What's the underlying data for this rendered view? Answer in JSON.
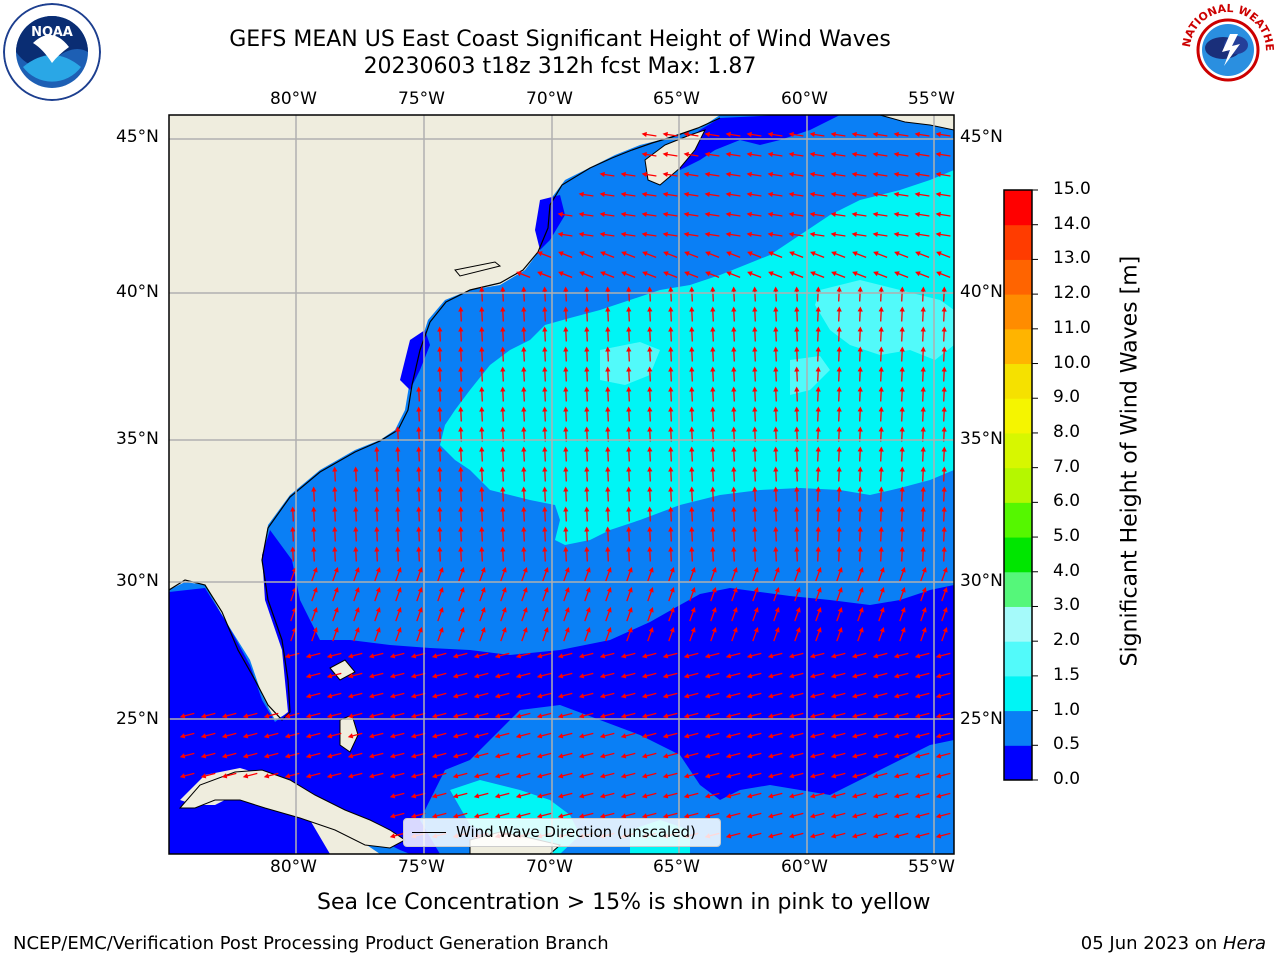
{
  "title": {
    "line1": "GEFS MEAN US East Coast Significant Height of Wind Waves",
    "line2": "20230603 t18z 312h fcst   Max: 1.87"
  },
  "map": {
    "lon_labels": [
      "80°W",
      "75°W",
      "70°W",
      "65°W",
      "60°W",
      "55°W"
    ],
    "lat_labels": [
      "45°N",
      "40°N",
      "35°N",
      "30°N",
      "25°N"
    ],
    "colors": {
      "land": "#efedde",
      "sea_0_05": "#0000ff",
      "sea_05_10": "#0a7ff5",
      "sea_10_15": "#00f5f5",
      "sea_15_20": "#52fafa",
      "arrow": "#ff0000",
      "grid": "#b0b0b0"
    }
  },
  "legend": {
    "label": "Wind Wave Direction (unscaled)"
  },
  "colorbar": {
    "ticks": [
      "0.0",
      "0.5",
      "1.0",
      "1.5",
      "2.0",
      "3.0",
      "4.0",
      "5.0",
      "6.0",
      "7.0",
      "8.0",
      "9.0",
      "10.0",
      "11.0",
      "12.0",
      "13.0",
      "14.0",
      "15.0"
    ],
    "colors": [
      "#0000ff",
      "#0a7ff5",
      "#00f5f5",
      "#52fafa",
      "#a5fafa",
      "#55f77a",
      "#00e600",
      "#55f700",
      "#b5f700",
      "#d7f700",
      "#f5f500",
      "#f5e100",
      "#ffb400",
      "#ff8c00",
      "#ff6400",
      "#ff3c00",
      "#ff0000"
    ],
    "label": "Significant Height of Wind Waves [m]"
  },
  "caption": "Sea Ice Concentration > 15% is shown in pink to yellow",
  "footer": {
    "left": "NCEP/EMC/Verification Post Processing Product Generation Branch",
    "right_date": "05 Jun 2023 on ",
    "right_host": "Hera"
  },
  "logos": {
    "left_text": "NOAA",
    "right_text": "NATIONAL WEATHER SERVICE"
  }
}
